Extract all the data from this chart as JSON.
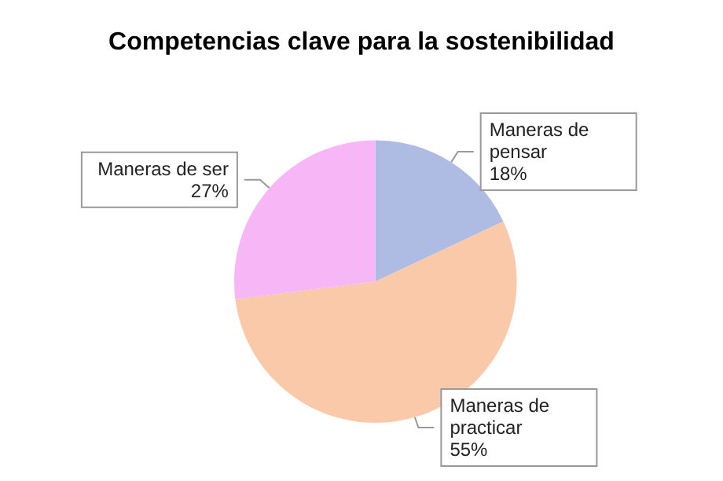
{
  "chart_data": {
    "type": "pie",
    "title": "Competencias clave para la sostenibilidad",
    "categories": [
      "Maneras de pensar",
      "Maneras de practicar",
      "Maneras de ser"
    ],
    "values": [
      18,
      55,
      27
    ],
    "colors": [
      "#aebbe2",
      "#f9c9a9",
      "#f7b7f7"
    ],
    "value_labels": [
      "18%",
      "55%",
      "27%"
    ],
    "legend": false
  }
}
